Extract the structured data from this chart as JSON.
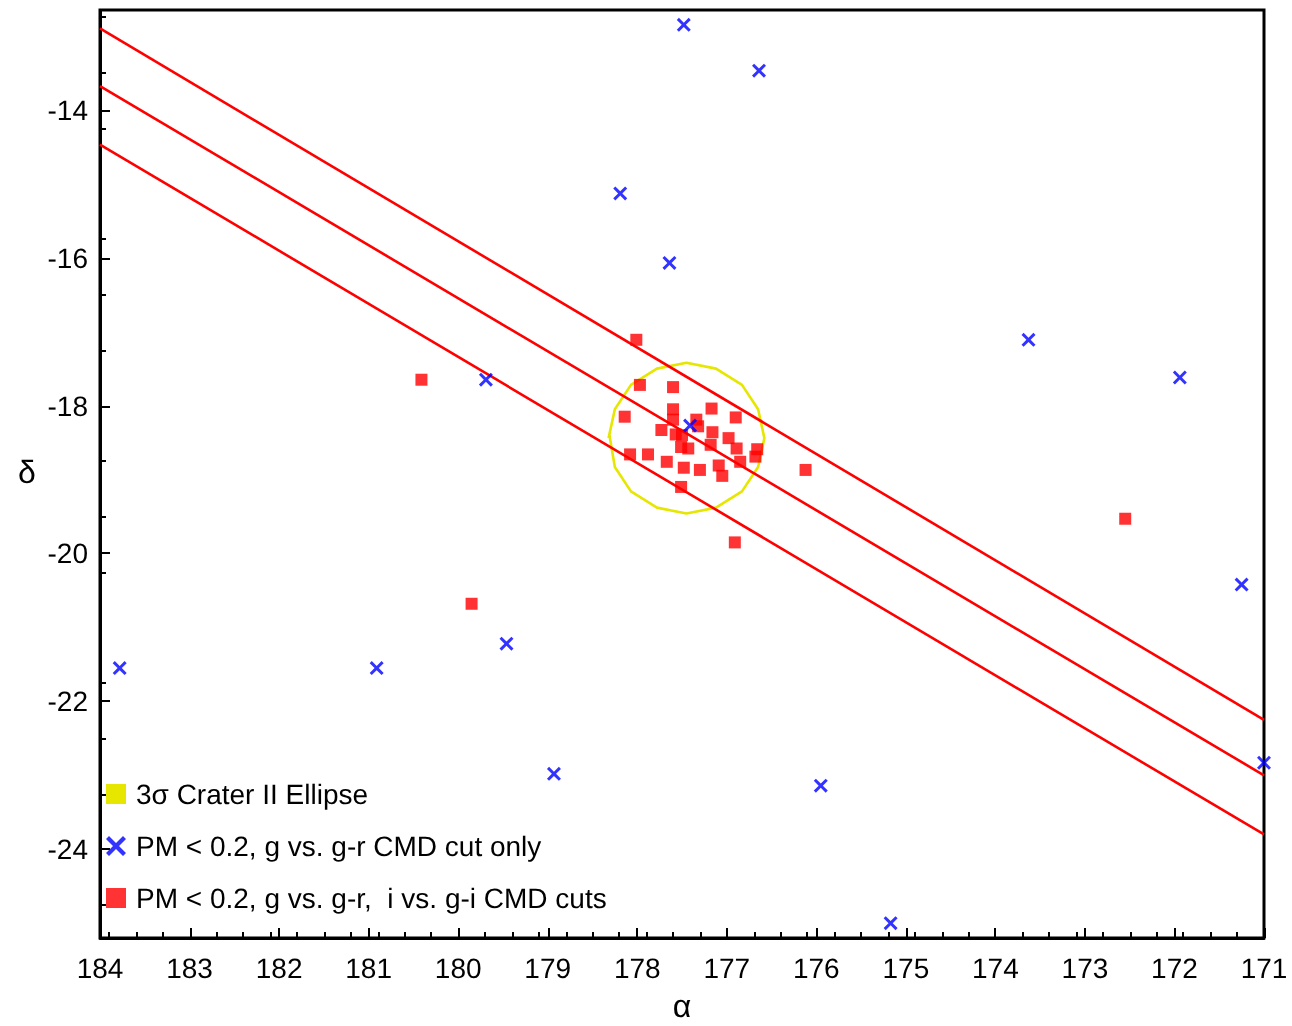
{
  "chart_data": {
    "type": "scatter",
    "xlabel": "α",
    "ylabel": "δ",
    "xlim": [
      184,
      171
    ],
    "ylim": [
      -25.2,
      -12.65
    ],
    "xticks": [
      184,
      183,
      182,
      181,
      180,
      179,
      178,
      177,
      176,
      175,
      174,
      173,
      172,
      171
    ],
    "yticks": [
      -14,
      -16,
      -18,
      -20,
      -22,
      -24
    ],
    "grid": false,
    "legend": "bottom left",
    "series": [
      {
        "name": "3σ Crater II Ellipse",
        "type": "line",
        "color": "#e6e600",
        "marker": "none",
        "x": [
          178.32,
          178.25,
          178.07,
          177.78,
          177.45,
          177.12,
          176.83,
          176.65,
          176.58,
          176.65,
          176.83,
          177.12,
          177.45,
          177.78,
          178.07,
          178.25,
          178.31
        ],
        "values": [
          -18.44,
          -18.05,
          -17.72,
          -17.5,
          -17.42,
          -17.5,
          -17.72,
          -18.05,
          -18.44,
          -18.83,
          -19.16,
          -19.38,
          -19.46,
          -19.38,
          -19.16,
          -18.83,
          -18.4
        ]
      },
      {
        "name": "PM < 0.2, g vs. g-r CMD cut only",
        "color": "#0000ff",
        "marker": "cross",
        "x": [
          177.48,
          176.64,
          178.19,
          177.64,
          179.69,
          173.63,
          171.94,
          177.41,
          183.78,
          180.91,
          179.46,
          178.93,
          175.95,
          175.17,
          171.25,
          171.0
        ],
        "values": [
          -12.85,
          -13.47,
          -15.13,
          -16.07,
          -17.65,
          -17.11,
          -17.62,
          -18.27,
          -21.55,
          -21.55,
          -21.22,
          -22.98,
          -23.14,
          -25.0,
          -20.42,
          -22.83
        ]
      },
      {
        "name": "PM < 0.2, g vs. g-r,  i vs. g-i CMD cuts",
        "color": "#ff0000",
        "marker": "square",
        "x": [
          180.41,
          178.01,
          177.97,
          177.6,
          178.14,
          177.6,
          177.6,
          177.73,
          177.57,
          177.5,
          177.34,
          177.32,
          177.17,
          176.9,
          177.16,
          176.98,
          177.18,
          177.43,
          177.51,
          176.89,
          176.66,
          176.68,
          176.85,
          178.08,
          177.88,
          177.67,
          177.48,
          177.3,
          177.09,
          177.05,
          177.51,
          176.12,
          179.85,
          176.91,
          172.55
        ],
        "values": [
          -17.65,
          -17.11,
          -17.72,
          -17.75,
          -18.15,
          -18.05,
          -18.19,
          -18.33,
          -18.39,
          -18.4,
          -18.19,
          -18.28,
          -18.04,
          -18.16,
          -18.36,
          -18.44,
          -18.53,
          -18.58,
          -18.56,
          -18.58,
          -18.59,
          -18.69,
          -18.76,
          -18.66,
          -18.66,
          -18.76,
          -18.84,
          -18.87,
          -18.81,
          -18.95,
          -19.1,
          -18.87,
          -20.68,
          -19.85,
          -19.53
        ]
      },
      {
        "type": "line",
        "color": "#ff0000",
        "marker": "none",
        "x": [
          184,
          171
        ],
        "values": [
          -12.9,
          -22.25
        ]
      },
      {
        "type": "line",
        "color": "#ff0000",
        "marker": "none",
        "x": [
          184,
          171
        ],
        "values": [
          -13.68,
          -23.0
        ]
      },
      {
        "type": "line",
        "color": "#ff0000",
        "marker": "none",
        "x": [
          184,
          171
        ],
        "values": [
          -14.47,
          -23.8
        ]
      }
    ]
  }
}
